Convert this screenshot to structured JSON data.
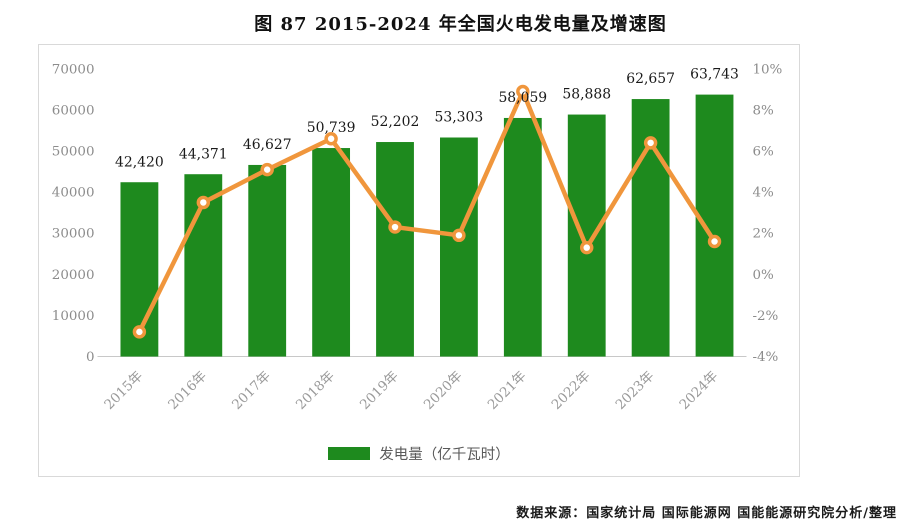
{
  "page": {
    "source_note": "数据来源：国家统计局  国际能源网  国能能源研究院分析/整理"
  },
  "chart_data": {
    "type": "bar+line",
    "title": "图 87 2015-2024 年全国火电发电量及增速图",
    "categories": [
      "2015年",
      "2016年",
      "2017年",
      "2018年",
      "2019年",
      "2020年",
      "2021年",
      "2022年",
      "2023年",
      "2024年"
    ],
    "series": [
      {
        "name": "发电量（亿千瓦时）",
        "type": "bar",
        "axis": "left",
        "color": "#1E8A1E",
        "values": [
          42420,
          44371,
          46627,
          50739,
          52202,
          53303,
          58059,
          58888,
          62657,
          63743
        ],
        "labels": [
          "42,420",
          "44,371",
          "46,627",
          "50,739",
          "52,202",
          "53,303",
          "58,059",
          "58,888",
          "62,657",
          "63,743"
        ]
      },
      {
        "name": "增速",
        "type": "line",
        "axis": "right",
        "color": "#F0963C",
        "marker_fill": "#FFFFFF",
        "values": [
          -2.8,
          3.5,
          5.1,
          6.6,
          2.3,
          1.9,
          8.9,
          1.3,
          6.4,
          1.6
        ],
        "show_in_legend": false
      }
    ],
    "left_axis": {
      "min": 0,
      "max": 70000,
      "tick_labels": [
        "0",
        "10000",
        "20000",
        "30000",
        "40000",
        "50000",
        "60000",
        "70000"
      ]
    },
    "right_axis": {
      "min": -4,
      "max": 10,
      "tick_labels": [
        "-4%",
        "-2%",
        "0%",
        "2%",
        "4%",
        "6%",
        "8%",
        "10%"
      ]
    },
    "grid": false,
    "legend_position": "bottom",
    "legend": [
      {
        "label": "发电量（亿千瓦时）",
        "color": "#1E8A1E"
      }
    ]
  },
  "style": {
    "bar_color": "#1E8A1E",
    "line_color": "#F0963C",
    "marker_fill": "#FFFFFF",
    "axis_text_color": "#8C8C8C",
    "axis_line_color": "#C8C8C8",
    "box_border_color": "#D9D9D9",
    "label_text_color": "#1A1A1A"
  }
}
